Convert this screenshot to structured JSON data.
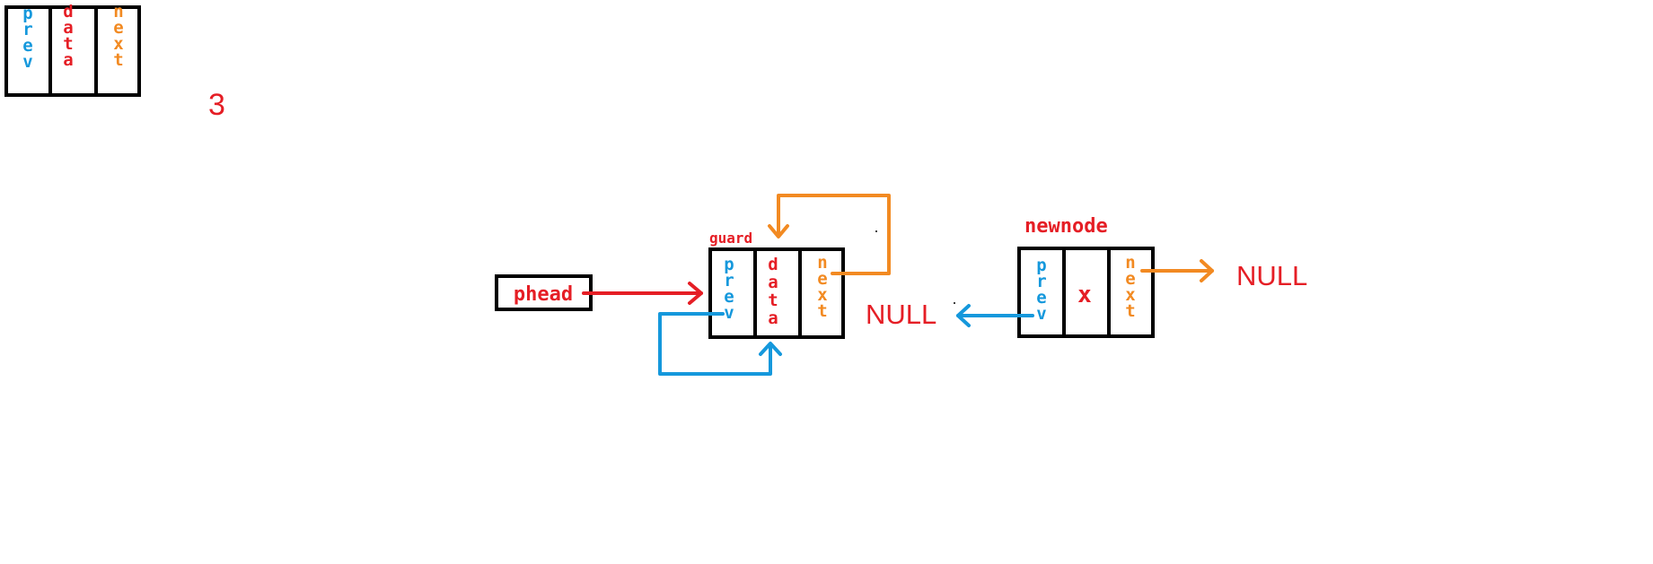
{
  "legend": {
    "prev": "prev",
    "data": "data",
    "next": "next"
  },
  "step_number": "3",
  "phead_label": "phead",
  "guard": {
    "label": "guard",
    "prev": "prev",
    "data": "data",
    "next": "next",
    "null_label": "NULL"
  },
  "newnode": {
    "label": "newnode",
    "prev": "prev",
    "data": "x",
    "next": "next",
    "null_label": "NULL"
  },
  "colors": {
    "prev": "#1598dc",
    "data": "#e51e25",
    "next": "#f28a22"
  }
}
